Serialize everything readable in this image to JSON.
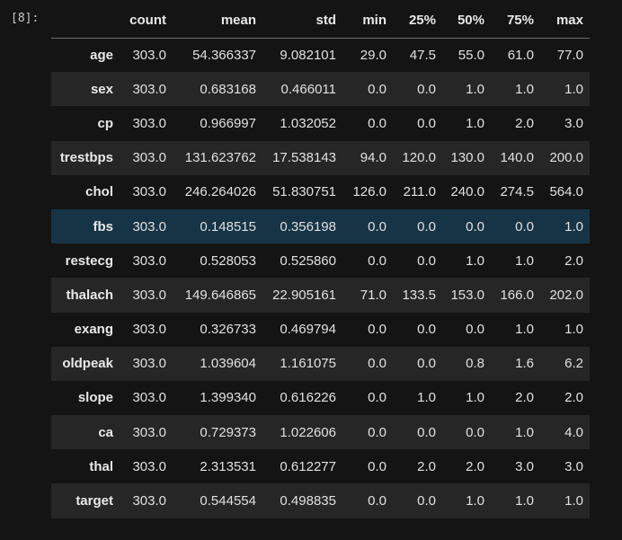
{
  "cell": {
    "prompt": "[8]:"
  },
  "table": {
    "columns": [
      "count",
      "mean",
      "std",
      "min",
      "25%",
      "50%",
      "75%",
      "max"
    ],
    "highlight_color": "#173447",
    "rows": [
      {
        "index": "age",
        "values": [
          "303.0",
          "54.366337",
          "9.082101",
          "29.0",
          "47.5",
          "55.0",
          "61.0",
          "77.0"
        ]
      },
      {
        "index": "sex",
        "values": [
          "303.0",
          "0.683168",
          "0.466011",
          "0.0",
          "0.0",
          "1.0",
          "1.0",
          "1.0"
        ]
      },
      {
        "index": "cp",
        "values": [
          "303.0",
          "0.966997",
          "1.032052",
          "0.0",
          "0.0",
          "1.0",
          "2.0",
          "3.0"
        ]
      },
      {
        "index": "trestbps",
        "values": [
          "303.0",
          "131.623762",
          "17.538143",
          "94.0",
          "120.0",
          "130.0",
          "140.0",
          "200.0"
        ]
      },
      {
        "index": "chol",
        "values": [
          "303.0",
          "246.264026",
          "51.830751",
          "126.0",
          "211.0",
          "240.0",
          "274.5",
          "564.0"
        ]
      },
      {
        "index": "fbs",
        "values": [
          "303.0",
          "0.148515",
          "0.356198",
          "0.0",
          "0.0",
          "0.0",
          "0.0",
          "1.0"
        ]
      },
      {
        "index": "restecg",
        "values": [
          "303.0",
          "0.528053",
          "0.525860",
          "0.0",
          "0.0",
          "1.0",
          "1.0",
          "2.0"
        ]
      },
      {
        "index": "thalach",
        "values": [
          "303.0",
          "149.646865",
          "22.905161",
          "71.0",
          "133.5",
          "153.0",
          "166.0",
          "202.0"
        ]
      },
      {
        "index": "exang",
        "values": [
          "303.0",
          "0.326733",
          "0.469794",
          "0.0",
          "0.0",
          "0.0",
          "1.0",
          "1.0"
        ]
      },
      {
        "index": "oldpeak",
        "values": [
          "303.0",
          "1.039604",
          "1.161075",
          "0.0",
          "0.0",
          "0.8",
          "1.6",
          "6.2"
        ]
      },
      {
        "index": "slope",
        "values": [
          "303.0",
          "1.399340",
          "0.616226",
          "0.0",
          "1.0",
          "1.0",
          "2.0",
          "2.0"
        ]
      },
      {
        "index": "ca",
        "values": [
          "303.0",
          "0.729373",
          "1.022606",
          "0.0",
          "0.0",
          "0.0",
          "1.0",
          "4.0"
        ]
      },
      {
        "index": "thal",
        "values": [
          "303.0",
          "2.313531",
          "0.612277",
          "0.0",
          "2.0",
          "2.0",
          "3.0",
          "3.0"
        ]
      },
      {
        "index": "target",
        "values": [
          "303.0",
          "0.544554",
          "0.498835",
          "0.0",
          "0.0",
          "1.0",
          "1.0",
          "1.0"
        ]
      }
    ]
  }
}
